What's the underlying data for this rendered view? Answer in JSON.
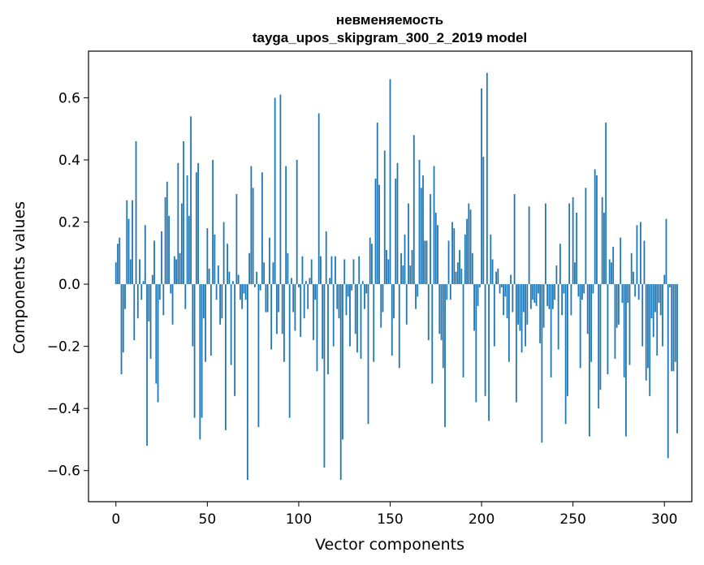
{
  "chart_data": {
    "type": "bar",
    "title_line1": "невменяемость",
    "title_line2": "tayga_upos_skipgram_300_2_2019 model",
    "xlabel": "Vector components",
    "ylabel": "Components values",
    "xlim": [
      -15,
      315
    ],
    "ylim": [
      -0.7,
      0.75
    ],
    "xticks": [
      0,
      50,
      100,
      150,
      200,
      250,
      300
    ],
    "xtick_labels": [
      "0",
      "50",
      "100",
      "150",
      "200",
      "250",
      "300"
    ],
    "yticks": [
      -0.6,
      -0.4,
      -0.2,
      0.0,
      0.2,
      0.4,
      0.6
    ],
    "ytick_labels": [
      "−0.6",
      "−0.4",
      "−0.2",
      "0.0",
      "0.2",
      "0.4",
      "0.6"
    ],
    "bar_color": "#1f77b4",
    "grid": false,
    "values": [
      0.07,
      0.13,
      0.15,
      -0.29,
      -0.22,
      -0.08,
      0.27,
      0.21,
      0.08,
      0.27,
      -0.18,
      0.46,
      -0.11,
      0.08,
      -0.05,
      0.01,
      0.19,
      -0.52,
      -0.12,
      -0.24,
      0.03,
      0.14,
      -0.32,
      -0.38,
      -0.05,
      0.17,
      -0.1,
      0.28,
      0.33,
      0.22,
      -0.03,
      -0.13,
      0.09,
      0.08,
      0.39,
      0.1,
      0.26,
      0.46,
      -0.08,
      0.35,
      0.22,
      0.54,
      -0.2,
      -0.43,
      0.36,
      0.39,
      -0.5,
      -0.43,
      -0.11,
      -0.25,
      0.18,
      0.05,
      -0.23,
      0.4,
      0.16,
      -0.05,
      0.06,
      -0.13,
      -0.11,
      0.2,
      -0.47,
      0.13,
      0.04,
      -0.26,
      0.01,
      -0.36,
      0.29,
      0.03,
      -0.05,
      -0.08,
      -0.03,
      -0.05,
      -0.63,
      0.1,
      0.38,
      0.31,
      -0.01,
      0.04,
      -0.46,
      -0.02,
      0.36,
      0.07,
      -0.09,
      -0.09,
      0.15,
      -0.21,
      0.07,
      0.6,
      -0.16,
      -0.09,
      0.61,
      -0.16,
      -0.25,
      0.38,
      0.1,
      -0.43,
      0.02,
      -0.09,
      -0.15,
      0.4,
      -0.01,
      -0.17,
      0.09,
      -0.11,
      0.01,
      -0.08,
      0.02,
      0.08,
      -0.18,
      -0.05,
      -0.28,
      0.55,
      0.09,
      -0.24,
      -0.59,
      0.17,
      -0.29,
      0.02,
      0.09,
      -0.2,
      0.09,
      -0.08,
      -0.11,
      -0.63,
      -0.5,
      0.08,
      -0.1,
      -0.04,
      -0.2,
      -0.02,
      0.08,
      -0.16,
      -0.22,
      0.09,
      -0.24,
      0.01,
      -0.08,
      -0.03,
      -0.45,
      0.15,
      0.13,
      -0.25,
      0.34,
      0.52,
      0.32,
      -0.14,
      -0.09,
      0.43,
      0.11,
      0.08,
      0.66,
      -0.23,
      -0.11,
      0.34,
      0.39,
      -0.27,
      0.1,
      0.06,
      0.16,
      -0.13,
      0.26,
      0.06,
      0.11,
      0.48,
      -0.08,
      -0.04,
      0.4,
      0.31,
      0.35,
      0.14,
      0.14,
      -0.18,
      0.29,
      -0.32,
      0.38,
      0.23,
      0.19,
      -0.16,
      -0.18,
      -0.27,
      -0.46,
      -0.05,
      0.14,
      -0.05,
      0.2,
      0.18,
      0.04,
      0.07,
      0.11,
      0.05,
      -0.3,
      0.16,
      0.21,
      0.26,
      0.24,
      0.1,
      -0.15,
      -0.38,
      -0.07,
      -0.01,
      0.63,
      0.41,
      -0.36,
      0.68,
      -0.44,
      0.16,
      0.08,
      -0.2,
      0.04,
      0.05,
      -0.03,
      -0.01,
      -0.1,
      -0.04,
      -0.11,
      -0.25,
      0.03,
      -0.09,
      0.29,
      -0.38,
      -0.13,
      -0.15,
      -0.22,
      -0.09,
      -0.2,
      -0.13,
      0.25,
      -0.08,
      -0.05,
      -0.06,
      -0.07,
      -0.03,
      -0.19,
      -0.51,
      -0.14,
      0.26,
      -0.07,
      -0.08,
      -0.3,
      -0.08,
      -0.05,
      0.06,
      -0.21,
      0.13,
      -0.1,
      -0.03,
      -0.45,
      -0.36,
      0.26,
      -0.1,
      0.28,
      0.07,
      0.23,
      -0.04,
      -0.27,
      -0.05,
      -0.03,
      0.31,
      -0.16,
      -0.49,
      -0.25,
      -0.03,
      0.37,
      0.35,
      -0.4,
      -0.34,
      0.28,
      0.23,
      0.52,
      -0.29,
      0.08,
      0.07,
      0.12,
      -0.24,
      -0.14,
      -0.13,
      0.15,
      -0.06,
      -0.3,
      -0.49,
      -0.06,
      -0.26,
      0.1,
      0.04,
      -0.04,
      0.19,
      -0.05,
      0.2,
      -0.2,
      0.14,
      -0.31,
      -0.27,
      -0.36,
      -0.11,
      -0.17,
      -0.09,
      -0.23,
      -0.06,
      -0.1,
      -0.2,
      0.03,
      0.21,
      -0.56,
      -0.01,
      -0.28,
      -0.28,
      -0.25,
      -0.48
    ]
  }
}
